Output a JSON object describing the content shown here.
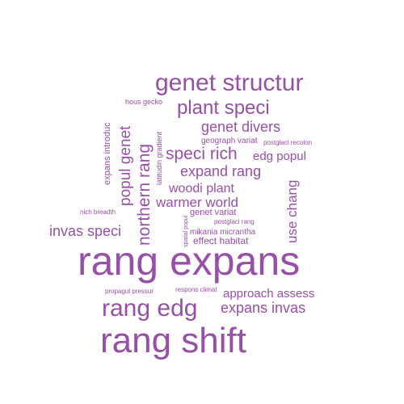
{
  "palette": {
    "word_color": "#9650a6",
    "background": "#ffffff"
  },
  "words": {
    "rang_expans": "rang expans",
    "rang_shift": "rang shift",
    "rang_edg": "rang edg",
    "genet_structur": "genet structur",
    "plant_speci": "plant speci",
    "genet_divers": "genet divers",
    "speci_rich": "speci rich",
    "edg_popul": "edg popul",
    "expand_rang": "expand rang",
    "woodi_plant": "woodi plant",
    "warmer_world": "warmer world",
    "invas_speci": "invas speci",
    "expans_invas": "expans invas",
    "approach_assess": "approach assess",
    "use_chang": "use chang",
    "northern_rang": "northern rang",
    "popul_genet": "popul genet",
    "expans_introduc": "expans introduc",
    "latitudin_gradient": "latitudin gradient",
    "hous_gecko": "hous gecko",
    "geograph_variat": "geograph variat",
    "postglaci_recolon": "postglaci recolon",
    "nich_breadth": "nich breadth",
    "spatial_popul": "spatial popul",
    "genet_variat": "genet variat",
    "postglaci_rang": "postglaci rang",
    "mikania_micrantha": "mikania micrantha",
    "effect_habitat": "effect habitat",
    "propagul_pressur": "propagul pressur",
    "respons_climat": "respons climat"
  }
}
